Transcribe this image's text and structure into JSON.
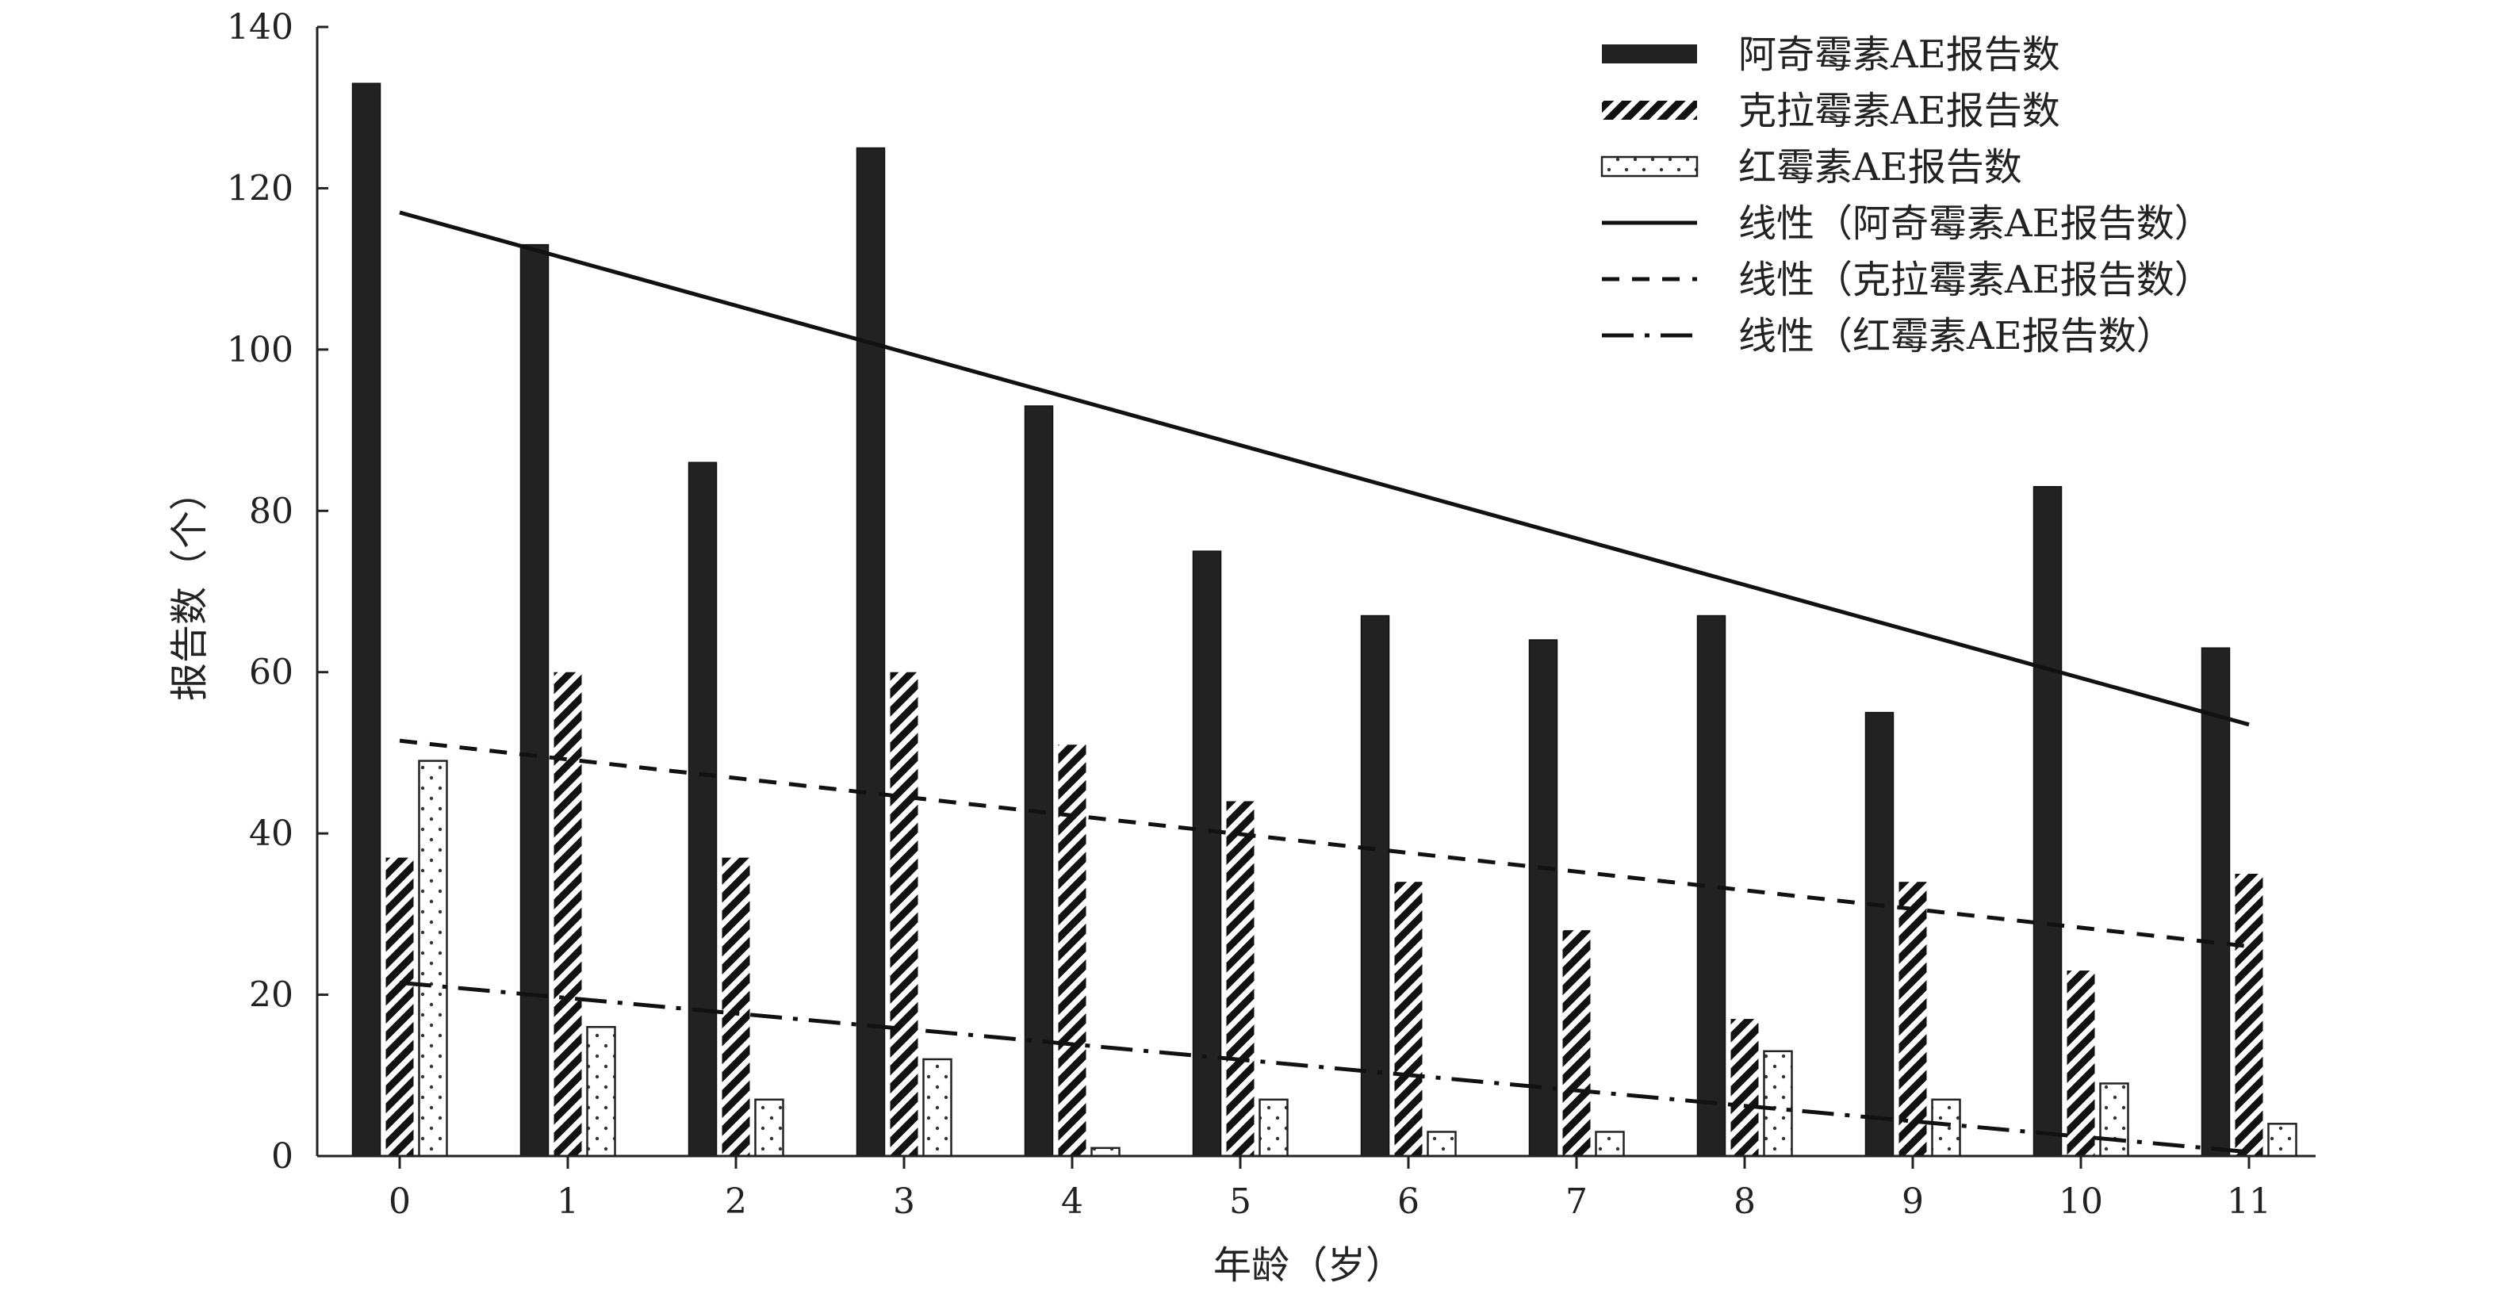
{
  "chart_data": {
    "type": "bar",
    "title": "",
    "xlabel": "年龄（岁）",
    "ylabel": "报告数（个）",
    "categories": [
      "0",
      "1",
      "2",
      "3",
      "4",
      "5",
      "6",
      "7",
      "8",
      "9",
      "10",
      "11"
    ],
    "ylim": [
      0,
      140
    ],
    "yticks": [
      "0",
      "20",
      "40",
      "60",
      "80",
      "100",
      "120",
      "140"
    ],
    "grid": false,
    "legend_position": "top-right",
    "series": [
      {
        "name": "阿奇霉素AE报告数",
        "style": "solid",
        "color": "#222222",
        "values": [
          133,
          113,
          86,
          125,
          93,
          75,
          67,
          64,
          67,
          55,
          83,
          63
        ]
      },
      {
        "name": "克拉霉素AE报告数",
        "style": "diagonal-hatch",
        "color": "#111111",
        "values": [
          37,
          60,
          37,
          60,
          51,
          44,
          34,
          28,
          17,
          34,
          23,
          35
        ]
      },
      {
        "name": "红霉素AE报告数",
        "style": "dotted",
        "color": "#ffffff",
        "values": [
          49,
          16,
          7,
          12,
          1,
          7,
          3,
          3,
          13,
          7,
          9,
          4
        ]
      }
    ],
    "trendlines": [
      {
        "name": "线性（阿奇霉素AE报告数）",
        "of_series": 0,
        "style": "solid",
        "start": 117,
        "end": 53.5
      },
      {
        "name": "线性（克拉霉素AE报告数）",
        "of_series": 1,
        "style": "dashed",
        "start": 51.5,
        "end": 26
      },
      {
        "name": "线性（红霉素AE报告数）",
        "of_series": 2,
        "style": "dash-dot",
        "start": 21.5,
        "end": 0.5
      }
    ]
  }
}
